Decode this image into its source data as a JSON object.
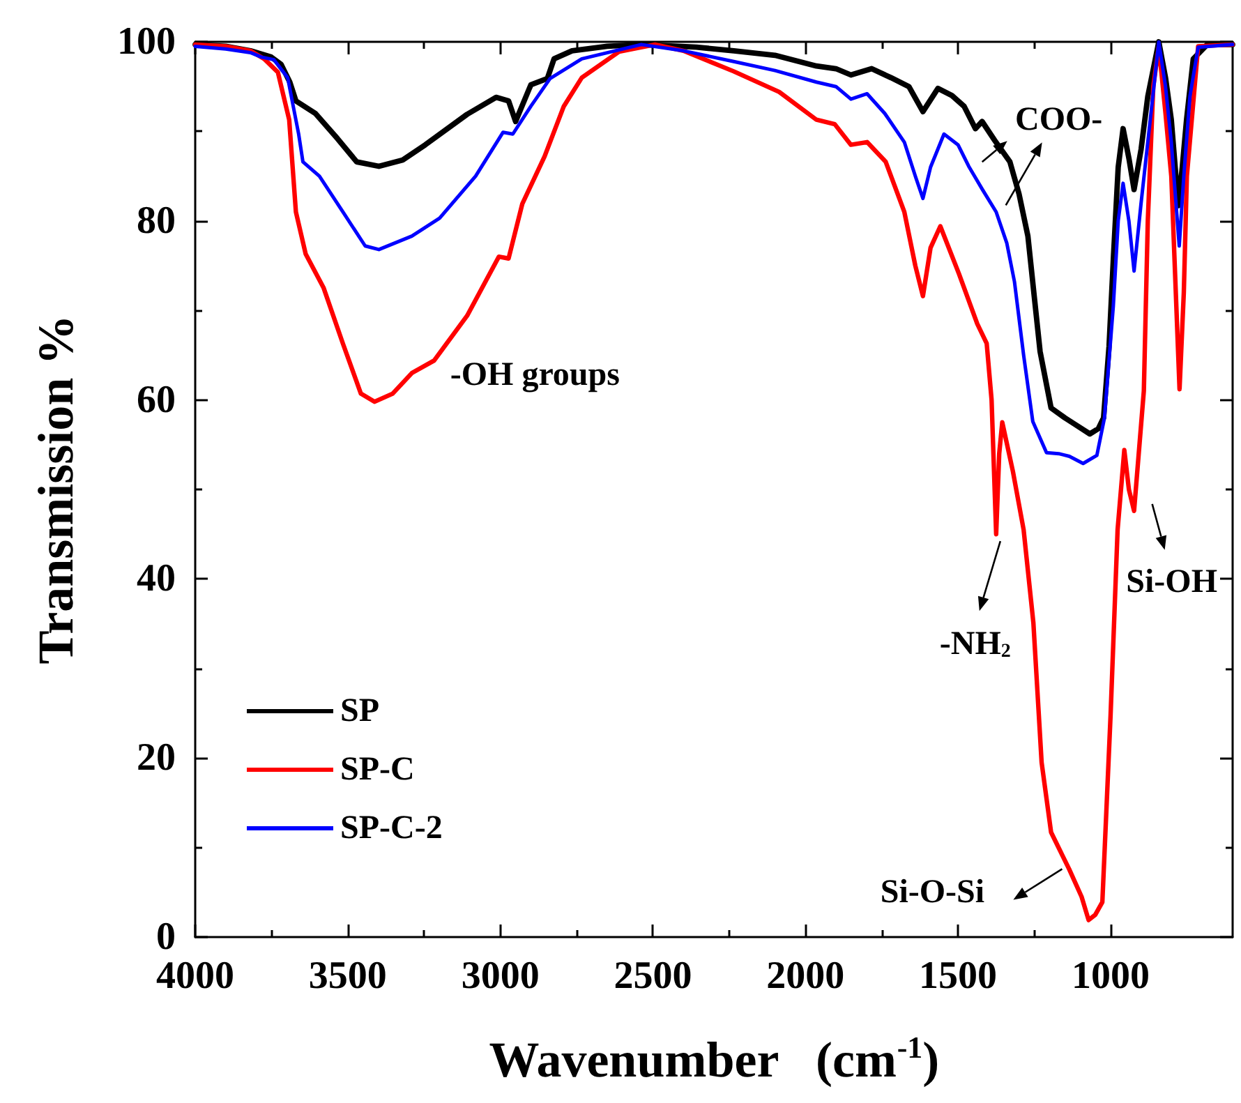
{
  "chart_data": {
    "type": "line",
    "xlabel": "Wavenumber   (cm$^{-1}$)",
    "ylabel": "Transmission %",
    "xlim": [
      4000,
      600
    ],
    "xticks": [
      4000,
      3500,
      3000,
      2500,
      2000,
      1500,
      1000
    ],
    "ylim": [
      0,
      100
    ],
    "yticks": [
      0,
      20,
      40,
      60,
      80,
      100
    ],
    "legend": "bottom left",
    "series": [
      {
        "name": "SP",
        "color": "#000000",
        "x": [
          4000,
          3900,
          3819,
          3751,
          3719,
          3690,
          3670,
          3606,
          3534,
          3471,
          3398,
          3320,
          3246,
          3109,
          3014,
          2973,
          2950,
          2900,
          2846,
          2824,
          2765,
          2650,
          2538,
          2357,
          2235,
          2100,
          1964,
          1900,
          1851,
          1783,
          1720,
          1661,
          1615,
          1566,
          1520,
          1480,
          1443,
          1421,
          1380,
          1330,
          1300,
          1271,
          1250,
          1231,
          1195,
          1150,
          1118,
          1068,
          1040,
          1023,
          1005,
          991,
          975,
          959,
          940,
          923,
          900,
          878,
          842,
          820,
          801,
          778,
          765,
          751,
          729,
          683,
          600
        ],
        "values": [
          99.7,
          99.5,
          99,
          98.3,
          97.5,
          95.5,
          93.4,
          92,
          89.2,
          86.6,
          86.1,
          86.8,
          88.5,
          91.9,
          93.8,
          93.4,
          91.1,
          95.2,
          95.9,
          98.1,
          99,
          99.5,
          99.7,
          99.4,
          99,
          98.5,
          97.3,
          97,
          96.3,
          97,
          96,
          95,
          92.2,
          94.8,
          94,
          92.8,
          90.3,
          91.1,
          89,
          86.6,
          83,
          78.3,
          71.5,
          65.4,
          59.1,
          58,
          57.3,
          56.2,
          56.8,
          58,
          66,
          75.7,
          86,
          90.3,
          87,
          83.5,
          88,
          93.9,
          100,
          96,
          91.3,
          81.7,
          86,
          91.3,
          98.1,
          99.7,
          99.7
        ]
      },
      {
        "name": "SP-C",
        "color": "#ff0000",
        "x": [
          4000,
          3900,
          3819,
          3774,
          3729,
          3692,
          3670,
          3638,
          3579,
          3516,
          3457,
          3412,
          3353,
          3290,
          3217,
          3109,
          3005,
          2973,
          2928,
          2855,
          2792,
          2733,
          2611,
          2493,
          2400,
          2235,
          2086,
          1964,
          1904,
          1851,
          1798,
          1737,
          1676,
          1640,
          1615,
          1590,
          1558,
          1497,
          1437,
          1406,
          1390,
          1380,
          1375,
          1365,
          1355,
          1320,
          1285,
          1253,
          1226,
          1195,
          1136,
          1095,
          1072,
          1050,
          1027,
          1000,
          977,
          955,
          940,
          923,
          891,
          878,
          860,
          842,
          820,
          801,
          774,
          760,
          750,
          713,
          600
        ],
        "values": [
          99.7,
          99.5,
          99,
          98.1,
          96.6,
          91.3,
          81,
          76.3,
          72.5,
          66.3,
          60.7,
          59.8,
          60.7,
          63,
          64.4,
          69.4,
          76,
          75.8,
          81.9,
          87.2,
          92.8,
          96,
          98.9,
          99.7,
          99,
          96.7,
          94.4,
          91.3,
          90.8,
          88.5,
          88.8,
          86.6,
          81,
          75,
          71.6,
          77,
          79.4,
          74.1,
          68.5,
          66.3,
          60,
          50,
          45,
          54,
          57.5,
          52,
          45.5,
          35.1,
          19.5,
          11.7,
          7.6,
          4.5,
          1.9,
          2.5,
          3.9,
          24.8,
          45.5,
          54.4,
          50,
          47.6,
          61,
          80,
          95,
          99.5,
          92,
          85,
          61.2,
          72,
          85,
          99.5,
          99.7
        ]
      },
      {
        "name": "SP-C-2",
        "color": "#0000ff",
        "x": [
          4000,
          3900,
          3819,
          3783,
          3742,
          3697,
          3661,
          3647,
          3593,
          3516,
          3443,
          3398,
          3290,
          3199,
          3081,
          2991,
          2959,
          2900,
          2837,
          2733,
          2538,
          2400,
          2235,
          2100,
          1964,
          1900,
          1851,
          1798,
          1740,
          1676,
          1640,
          1615,
          1590,
          1546,
          1500,
          1465,
          1420,
          1375,
          1340,
          1315,
          1285,
          1255,
          1210,
          1170,
          1135,
          1090,
          1045,
          1020,
          991,
          975,
          959,
          940,
          923,
          900,
          878,
          842,
          820,
          801,
          775,
          760,
          740,
          713,
          600
        ],
        "values": [
          99.5,
          99.2,
          98.8,
          98.3,
          98,
          96,
          89.7,
          86.6,
          85,
          81,
          77.2,
          76.8,
          78.3,
          80.3,
          85,
          89.9,
          89.7,
          92.8,
          95.9,
          98.1,
          99.7,
          99,
          97.8,
          96.8,
          95.5,
          95,
          93.6,
          94.2,
          92,
          88.8,
          85,
          82.5,
          86,
          89.7,
          88.5,
          86.1,
          83.5,
          81,
          77.5,
          73.2,
          65,
          57.6,
          54.1,
          54,
          53.7,
          52.9,
          53.8,
          58,
          70.5,
          80,
          84.2,
          80,
          74.4,
          82,
          88.8,
          100,
          95,
          88.8,
          77.2,
          85,
          93.9,
          99.4,
          99.7
        ]
      }
    ],
    "annotations": [
      {
        "text": "-OH groups",
        "x": 3412,
        "y": 59.8
      },
      {
        "text": "COO-",
        "x": 1421,
        "y": 91.1
      },
      {
        "text": "-NH$_{2}$",
        "x": 1375,
        "y": 45
      },
      {
        "text": "Si-OH",
        "x": 923,
        "y": 47.6
      },
      {
        "text": "Si-O-Si",
        "x": 1136,
        "y": 7.6
      }
    ]
  }
}
